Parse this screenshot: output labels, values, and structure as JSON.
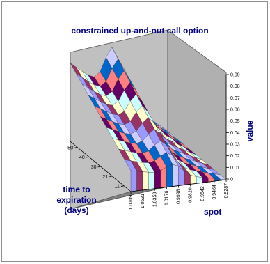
{
  "chart_data": {
    "type": "surface",
    "title": "constrained up-and-out call option",
    "xlabel": "spot",
    "ylabel": "time to expiration (days)",
    "zlabel": "value",
    "ylabel_lines": [
      "time to",
      "expiration",
      "(days)"
    ],
    "spot_ticks": [
      "1.0709",
      "1.0531",
      "1.0353",
      "1.0176",
      "0.9998",
      "0.9820",
      "0.9642",
      "0.9464",
      "0.9287"
    ],
    "time_ticks": [
      "11",
      "21",
      "30",
      "40",
      "50"
    ],
    "value_ticks": [
      "0",
      "0.01",
      "0.02",
      "0.03",
      "0.04",
      "0.05",
      "0.06",
      "0.07",
      "0.08",
      "0.09"
    ],
    "zlim": [
      0,
      0.09
    ],
    "colors": {
      "wall": "#c0c0c0",
      "floor": "#808080",
      "title": "#000080",
      "surface_bands": [
        "#9999ff",
        "#993366",
        "#ffffcc",
        "#ccffff",
        "#660066",
        "#ff8080",
        "#0066cc",
        "#ccccff"
      ]
    }
  }
}
